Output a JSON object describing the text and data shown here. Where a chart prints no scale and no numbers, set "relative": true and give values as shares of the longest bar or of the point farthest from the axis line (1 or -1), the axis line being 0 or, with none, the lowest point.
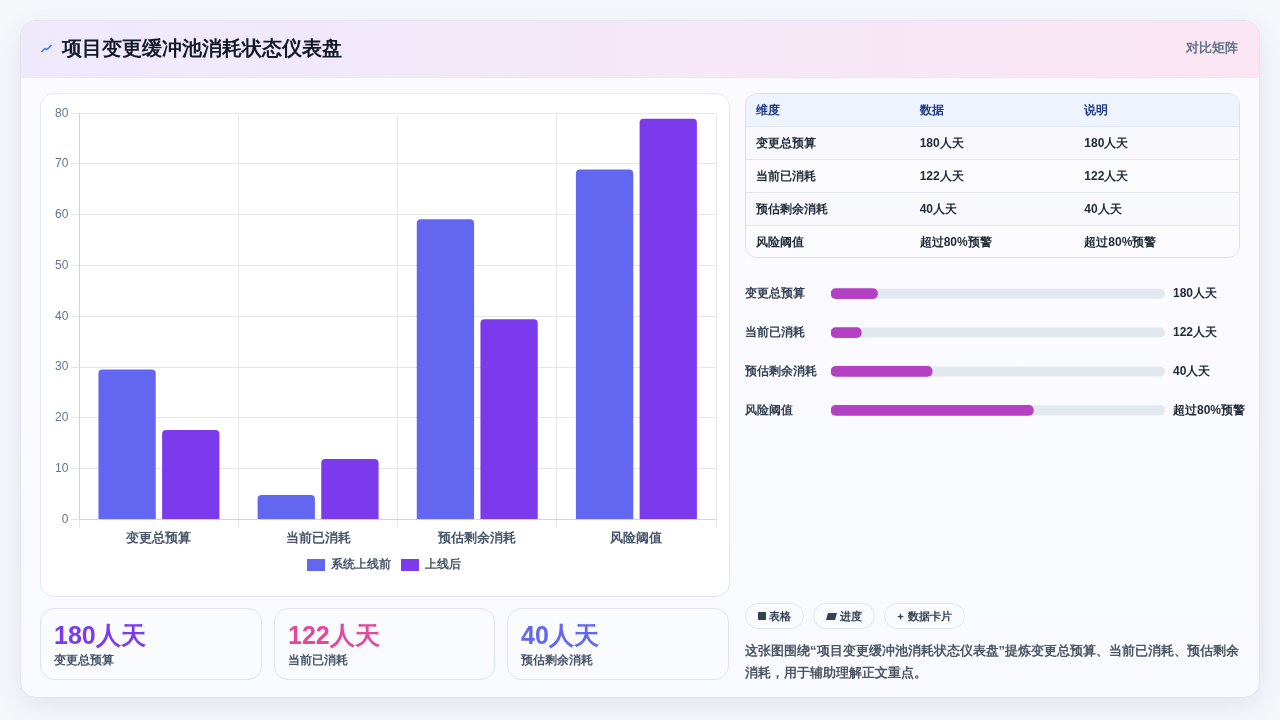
{
  "chart_data": [
    {
      "type": "other",
      "title": "项目变更缓冲池消耗状态仪表盘",
      "annotations": [
        "对比矩阵"
      ]
    },
    {
      "type": "bar",
      "categories": [
        "变更总预算",
        "当前已消耗",
        "预估剩余消耗",
        "风险阈值"
      ],
      "series": [
        {
          "name": "系统上线前",
          "color": "#6366f1",
          "values": [
            29.5,
            4.8,
            59.1,
            68.9
          ]
        },
        {
          "name": "上线后",
          "color": "#7c3aed",
          "values": [
            17.6,
            11.9,
            39.4,
            78.9
          ]
        }
      ],
      "ylim": [
        0,
        80
      ],
      "yticks": [
        0,
        10,
        20,
        30,
        40,
        50,
        60,
        70,
        80
      ],
      "grid": true,
      "legend": "bottom"
    },
    {
      "type": "other",
      "annotations": [
        "维度",
        "数据",
        "说明",
        "变更总预算",
        "180人天",
        "180人天",
        "当前已消耗",
        "122人天",
        "122人天",
        "预估剩余消耗",
        "40人天",
        "40人天",
        "风险阈值",
        "超过80%预警",
        "超过80%预警"
      ]
    },
    {
      "type": "bar",
      "orientation": "horizontal",
      "relative": true,
      "categories": [
        "变更总预算",
        "当前已消耗",
        "预估剩余消耗",
        "风险阈值"
      ],
      "values": [
        0.23,
        0.15,
        0.5,
        1
      ],
      "color": "#b441c3",
      "annotations": [
        "180人天",
        "122人天",
        "40人天",
        "超过80%预警"
      ]
    },
    {
      "type": "other",
      "annotations": [
        "180人天",
        "变更总预算"
      ],
      "color": "#7c3aed"
    },
    {
      "type": "other",
      "annotations": [
        "122人天",
        "当前已消耗"
      ],
      "color": "#e2489b"
    },
    {
      "type": "other",
      "annotations": [
        "40人天",
        "预估剩余消耗"
      ],
      "color": "#6366f1"
    },
    {
      "type": "other",
      "annotations": [
        "表格",
        "进度",
        "数据卡片"
      ]
    },
    {
      "type": "other",
      "annotations": [
        "这张图围绕“项目变更缓冲池消耗状态仪表盘”提炼变更总预算、当前已消耗、预估剩余消耗，用于辅助理解正文重点。"
      ]
    }
  ]
}
